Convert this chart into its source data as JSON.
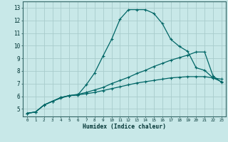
{
  "xlabel": "Humidex (Indice chaleur)",
  "bg_color": "#c8e8e8",
  "grid_color": "#a8cccc",
  "line_color": "#006666",
  "xlim": [
    -0.5,
    23.5
  ],
  "ylim": [
    4.4,
    13.5
  ],
  "xticks": [
    0,
    1,
    2,
    3,
    4,
    5,
    6,
    7,
    8,
    9,
    10,
    11,
    12,
    13,
    14,
    15,
    16,
    17,
    18,
    19,
    20,
    21,
    22,
    23
  ],
  "yticks": [
    5,
    6,
    7,
    8,
    9,
    10,
    11,
    12,
    13
  ],
  "line1_x": [
    0,
    1,
    2,
    3,
    4,
    5,
    6,
    7,
    8,
    9,
    10,
    11,
    12,
    13,
    14,
    15,
    16,
    17,
    18,
    19,
    20,
    21,
    22,
    23
  ],
  "line1_y": [
    4.65,
    4.75,
    5.3,
    5.6,
    5.85,
    6.05,
    6.1,
    6.9,
    7.85,
    9.2,
    10.5,
    12.1,
    12.85,
    12.85,
    12.85,
    12.55,
    11.75,
    10.5,
    9.95,
    9.55,
    8.25,
    8.05,
    7.45,
    7.15
  ],
  "line2_x": [
    0,
    1,
    2,
    3,
    4,
    5,
    6,
    7,
    8,
    9,
    10,
    11,
    12,
    13,
    14,
    15,
    16,
    17,
    18,
    19,
    20,
    21,
    22,
    23
  ],
  "line2_y": [
    4.65,
    4.75,
    5.3,
    5.6,
    5.9,
    6.05,
    6.15,
    6.3,
    6.5,
    6.7,
    7.0,
    7.25,
    7.5,
    7.8,
    8.05,
    8.35,
    8.6,
    8.85,
    9.05,
    9.25,
    9.5,
    9.5,
    7.6,
    7.1
  ],
  "line3_x": [
    0,
    1,
    2,
    3,
    4,
    5,
    6,
    7,
    8,
    9,
    10,
    11,
    12,
    13,
    14,
    15,
    16,
    17,
    18,
    19,
    20,
    21,
    22,
    23
  ],
  "line3_y": [
    4.65,
    4.75,
    5.3,
    5.6,
    5.9,
    6.05,
    6.1,
    6.2,
    6.3,
    6.45,
    6.6,
    6.75,
    6.9,
    7.05,
    7.15,
    7.25,
    7.35,
    7.45,
    7.5,
    7.55,
    7.55,
    7.55,
    7.45,
    7.35
  ]
}
